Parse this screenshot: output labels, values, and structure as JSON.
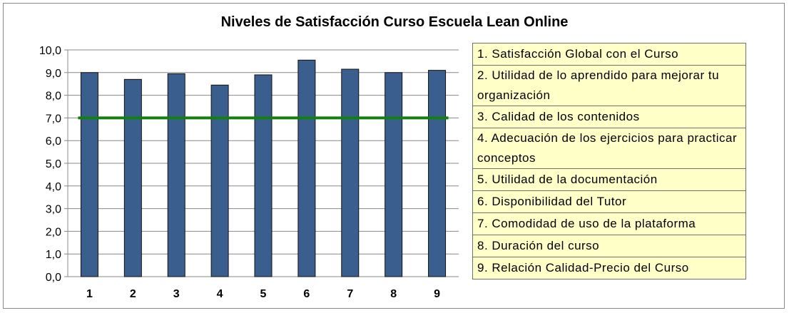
{
  "chart_data": {
    "type": "bar",
    "title": "Niveles de Satisfacción Curso Escuela Lean Online",
    "xlabel": "",
    "ylabel": "",
    "categories": [
      "1",
      "2",
      "3",
      "4",
      "5",
      "6",
      "7",
      "8",
      "9"
    ],
    "values": [
      9.0,
      8.7,
      8.95,
      8.45,
      8.9,
      9.55,
      9.15,
      9.0,
      9.1
    ],
    "target": 7.0,
    "ylim": [
      0,
      10
    ],
    "yticks": [
      "0,0",
      "1,0",
      "2,0",
      "3,0",
      "4,0",
      "5,0",
      "6,0",
      "7,0",
      "8,0",
      "9,0",
      "10,0"
    ],
    "grid": true,
    "legend_position": "right",
    "legend": [
      "1. Satisfacción Global con el Curso",
      "2. Utilidad de lo aprendido para mejorar tu organización",
      "3. Calidad de los contenidos",
      "4. Adecuación de los ejercicios para practicar conceptos",
      "5. Utilidad de la documentación",
      "6. Disponibilidad del Tutor",
      "7. Comodidad de uso de la plataforma",
      "8. Duración del curso",
      "9. Relación Calidad-Precio del Curso"
    ],
    "colors": {
      "bar": "#3a5f8f",
      "bar_border": "#111111",
      "target_line": "#118011",
      "legend_bg": "#ffffc8"
    }
  }
}
